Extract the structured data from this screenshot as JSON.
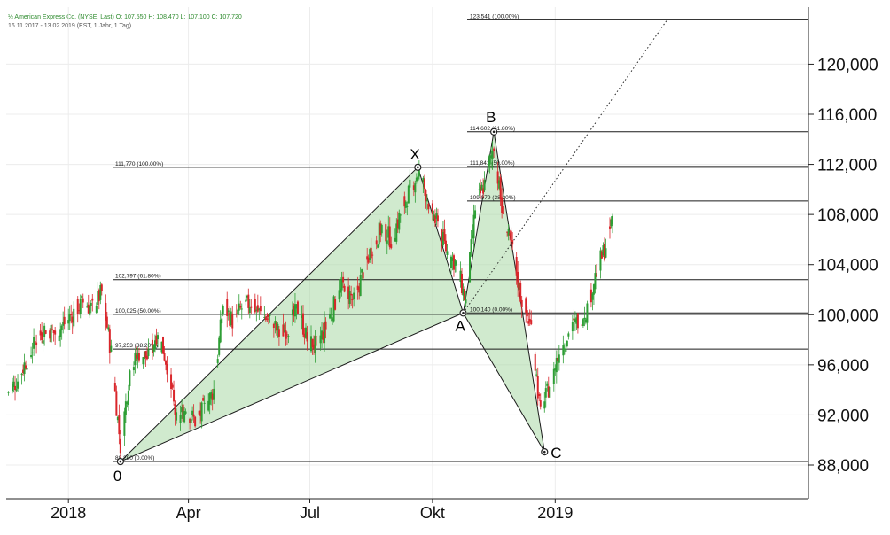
{
  "header": {
    "title": "½ American Express Co. (NYSE, Last)  O: 107,550  H: 108,470  L: 107,100  C: 107,720",
    "subtitle": "16.11.2017 - 13.02.2019   (EST, 1 Jahr, 1 Tag)"
  },
  "chart_data": {
    "type": "candlestick",
    "y_axis": {
      "ticks": [
        "88,000",
        "92,000",
        "96,000",
        "100,000",
        "104,000",
        "108,000",
        "112,000",
        "116,000",
        "120,000"
      ],
      "tick_values": [
        88,
        92,
        96,
        100,
        104,
        108,
        112,
        116,
        120
      ],
      "range": [
        85.5,
        125
      ]
    },
    "x_axis": {
      "ticks": [
        "2018",
        "Apr",
        "Jul",
        "Okt",
        "2019"
      ],
      "range": [
        "2017-11-16",
        "2019-02-13"
      ]
    },
    "grid": true,
    "pattern_points": [
      {
        "label": "0",
        "date": "2018-02-09",
        "value": 88.28
      },
      {
        "label": "X",
        "date": "2018-09-20",
        "value": 111.77
      },
      {
        "label": "A",
        "date": "2018-10-24",
        "value": 100.14
      },
      {
        "label": "B",
        "date": "2018-11-16",
        "value": 114.602
      },
      {
        "label": "C",
        "date": "2018-12-24",
        "value": 89.05
      }
    ],
    "fib_levels": [
      {
        "value": 123.541,
        "label": "123,541 (100.00%)"
      },
      {
        "value": 114.602,
        "label": "114,602 (61.80%)"
      },
      {
        "value": 111.841,
        "label": "111,841 (50.00%)"
      },
      {
        "value": 111.77,
        "label": "111,770 (100.00%)"
      },
      {
        "value": 109.079,
        "label": "109,079 (38.20%)"
      },
      {
        "value": 102.797,
        "label": "102,797 (61.80%)"
      },
      {
        "value": 100.025,
        "label": "100,025 (50.00%)"
      },
      {
        "value": 100.14,
        "label": "100,140 (0.00%)"
      },
      {
        "value": 97.253,
        "label": "97,253 (38.20%)"
      },
      {
        "value": 88.28,
        "label": "88,280 (0.00%)"
      }
    ],
    "trend_line": {
      "from": {
        "date": "2018-10-24",
        "value": 100.14
      },
      "to": {
        "date": "2019-03-26",
        "value": 123.541
      }
    },
    "price_series": [
      {
        "date": "2017-11-16",
        "close": 93.7
      },
      {
        "date": "2017-11-24",
        "close": 94.8
      },
      {
        "date": "2017-12-01",
        "close": 96.5
      },
      {
        "date": "2017-12-08",
        "close": 98.0
      },
      {
        "date": "2017-12-15",
        "close": 99.0
      },
      {
        "date": "2017-12-22",
        "close": 98.5
      },
      {
        "date": "2017-12-29",
        "close": 99.3
      },
      {
        "date": "2018-01-05",
        "close": 100.2
      },
      {
        "date": "2018-01-12",
        "close": 101.0
      },
      {
        "date": "2018-01-19",
        "close": 100.5
      },
      {
        "date": "2018-01-26",
        "close": 101.8
      },
      {
        "date": "2018-02-02",
        "close": 97.0
      },
      {
        "date": "2018-02-09",
        "close": 89.5
      },
      {
        "date": "2018-02-16",
        "close": 95.5
      },
      {
        "date": "2018-02-23",
        "close": 97.0
      },
      {
        "date": "2018-03-02",
        "close": 96.5
      },
      {
        "date": "2018-03-09",
        "close": 98.8
      },
      {
        "date": "2018-03-16",
        "close": 96.0
      },
      {
        "date": "2018-03-23",
        "close": 91.5
      },
      {
        "date": "2018-03-30",
        "close": 92.5
      },
      {
        "date": "2018-04-06",
        "close": 91.5
      },
      {
        "date": "2018-04-13",
        "close": 92.5
      },
      {
        "date": "2018-04-20",
        "close": 94.0
      },
      {
        "date": "2018-04-27",
        "close": 100.8
      },
      {
        "date": "2018-05-04",
        "close": 99.5
      },
      {
        "date": "2018-05-11",
        "close": 100.5
      },
      {
        "date": "2018-05-18",
        "close": 101.0
      },
      {
        "date": "2018-05-25",
        "close": 100.0
      },
      {
        "date": "2018-06-01",
        "close": 99.5
      },
      {
        "date": "2018-06-08",
        "close": 98.5
      },
      {
        "date": "2018-06-15",
        "close": 99.0
      },
      {
        "date": "2018-06-22",
        "close": 100.5
      },
      {
        "date": "2018-06-29",
        "close": 98.0
      },
      {
        "date": "2018-07-06",
        "close": 97.5
      },
      {
        "date": "2018-07-13",
        "close": 99.0
      },
      {
        "date": "2018-07-20",
        "close": 101.0
      },
      {
        "date": "2018-07-27",
        "close": 102.5
      },
      {
        "date": "2018-08-03",
        "close": 101.0
      },
      {
        "date": "2018-08-10",
        "close": 103.5
      },
      {
        "date": "2018-08-17",
        "close": 105.5
      },
      {
        "date": "2018-08-24",
        "close": 107.0
      },
      {
        "date": "2018-08-31",
        "close": 106.0
      },
      {
        "date": "2018-09-07",
        "close": 108.0
      },
      {
        "date": "2018-09-14",
        "close": 110.0
      },
      {
        "date": "2018-09-21",
        "close": 111.5
      },
      {
        "date": "2018-09-28",
        "close": 109.0
      },
      {
        "date": "2018-10-05",
        "close": 107.0
      },
      {
        "date": "2018-10-12",
        "close": 105.0
      },
      {
        "date": "2018-10-19",
        "close": 104.0
      },
      {
        "date": "2018-10-26",
        "close": 101.0
      },
      {
        "date": "2018-11-02",
        "close": 108.5
      },
      {
        "date": "2018-11-09",
        "close": 110.5
      },
      {
        "date": "2018-11-16",
        "close": 113.5
      },
      {
        "date": "2018-11-23",
        "close": 107.5
      },
      {
        "date": "2018-11-30",
        "close": 105.0
      },
      {
        "date": "2018-12-07",
        "close": 101.0
      },
      {
        "date": "2018-12-14",
        "close": 99.0
      },
      {
        "date": "2018-12-21",
        "close": 92.0
      },
      {
        "date": "2018-12-28",
        "close": 94.5
      },
      {
        "date": "2019-01-04",
        "close": 97.0
      },
      {
        "date": "2019-01-11",
        "close": 98.5
      },
      {
        "date": "2019-01-18",
        "close": 99.5
      },
      {
        "date": "2019-01-25",
        "close": 100.5
      },
      {
        "date": "2019-02-01",
        "close": 103.5
      },
      {
        "date": "2019-02-08",
        "close": 105.5
      },
      {
        "date": "2019-02-13",
        "close": 107.72
      }
    ],
    "colors": {
      "up": "#2e9e35",
      "down": "#d9262b",
      "pattern_fill": "#a9d8a5",
      "line": "#111111"
    }
  }
}
